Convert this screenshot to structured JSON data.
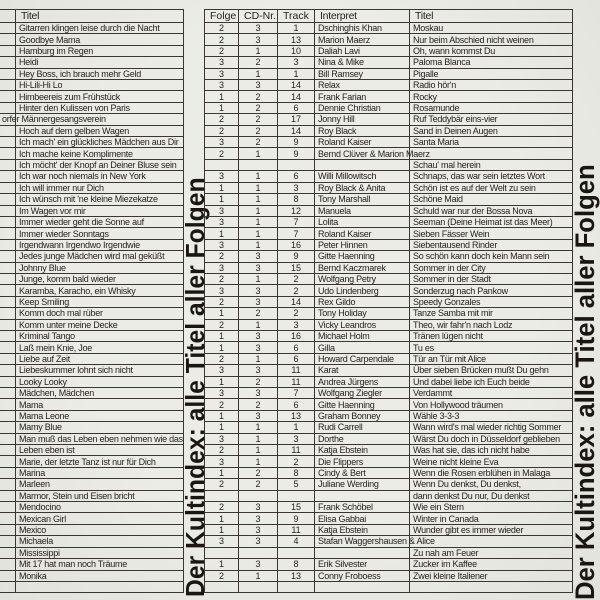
{
  "banners": {
    "middle": "Der Kultindex: alle Titel aller Folgen",
    "right": "Der Kultindex: alle Titel aller Folgen"
  },
  "left_table": {
    "header": "Titel",
    "rows": [
      {
        "text": "Gitarren klingen leise durch die Nacht"
      },
      {
        "text": "Goodbye Mama"
      },
      {
        "text": "Hamburg im Regen"
      },
      {
        "text": "Heidi"
      },
      {
        "text": "Hey Boss, ich brauch mehr Geld"
      },
      {
        "text": "Hi-Lili-Hi Lo"
      },
      {
        "text": "Himbeereis zum Frühstück"
      },
      {
        "text": "Hinter den Kulissen von Paris"
      },
      {
        "text": "orfer Männergesangsverein",
        "cut_left": true
      },
      {
        "text": "Hoch auf dem gelben Wagen"
      },
      {
        "text": "Ich mach' ein glückliches Mädchen aus Dir"
      },
      {
        "text": "Ich mache keine Komplimente"
      },
      {
        "text": "Ich möcht' der Knopf an Deiner Bluse sein"
      },
      {
        "text": "Ich war noch niemals in New York"
      },
      {
        "text": "Ich will immer nur Dich"
      },
      {
        "text": "Ich wünsch mit 'ne kleine Miezekatze"
      },
      {
        "text": "Im Wagen vor mir"
      },
      {
        "text": "Immer wieder geht die Sonne auf"
      },
      {
        "text": "Immer wieder Sonntags"
      },
      {
        "text": "Irgendwann Irgendwo Irgendwie"
      },
      {
        "text": "Jedes junge Mädchen wird mal geküßt"
      },
      {
        "text": "Johnny Blue"
      },
      {
        "text": "Junge, komm bald wieder"
      },
      {
        "text": "Karamba, Karacho, ein Whisky"
      },
      {
        "text": "Keep Smiling"
      },
      {
        "text": "Komm doch mal rüber"
      },
      {
        "text": "Komm unter meine Decke"
      },
      {
        "text": "Kriminal Tango"
      },
      {
        "text": "Laß mein Knie, Joe"
      },
      {
        "text": "Liebe auf Zeit"
      },
      {
        "text": "Liebeskummer lohnt sich nicht"
      },
      {
        "text": "Looky Looky"
      },
      {
        "text": "Mädchen, Mädchen"
      },
      {
        "text": "Mama"
      },
      {
        "text": "Mama Leone"
      },
      {
        "text": "Mamy Blue"
      },
      {
        "text": "Man muß das Leben eben nehmen wie das"
      },
      {
        "text": "Leben eben ist"
      },
      {
        "text": "Marie, der letzte Tanz ist nur für Dich"
      },
      {
        "text": "Marina"
      },
      {
        "text": "Marleen"
      },
      {
        "text": "Marmor, Stein und Eisen bricht"
      },
      {
        "text": "Mendocino"
      },
      {
        "text": "Mexican Girl"
      },
      {
        "text": "Mexico"
      },
      {
        "text": "Michaela"
      },
      {
        "text": "Mississippi"
      },
      {
        "text": "Mit 17 hat man noch Träume"
      },
      {
        "text": "Monika"
      },
      {
        "text": ""
      }
    ]
  },
  "right_table": {
    "headers": {
      "folge": "Folge",
      "cd": "CD-Nr.",
      "track": "Track",
      "interpret": "Interpret",
      "titel": "Titel"
    },
    "rows": [
      {
        "folge": "2",
        "cd": "3",
        "track": "1",
        "interpret": "Dschinghis Khan",
        "titel": "Moskau"
      },
      {
        "folge": "2",
        "cd": "3",
        "track": "13",
        "interpret": "Marion Maerz",
        "titel": "Nur beim Abschied nicht weinen"
      },
      {
        "folge": "2",
        "cd": "1",
        "track": "10",
        "interpret": "Daliah Lavi",
        "titel": "Oh, wann kommst Du"
      },
      {
        "folge": "3",
        "cd": "2",
        "track": "3",
        "interpret": "Nina & Mike",
        "titel": "Paloma Blanca"
      },
      {
        "folge": "3",
        "cd": "1",
        "track": "1",
        "interpret": "Bill Ramsey",
        "titel": "Pigalle"
      },
      {
        "folge": "3",
        "cd": "3",
        "track": "14",
        "interpret": "Relax",
        "titel": "Radio hör'n"
      },
      {
        "folge": "1",
        "cd": "2",
        "track": "14",
        "interpret": "Frank Farian",
        "titel": "Rocky"
      },
      {
        "folge": "1",
        "cd": "2",
        "track": "6",
        "interpret": "Dennie Christian",
        "titel": "Rosamunde"
      },
      {
        "folge": "2",
        "cd": "2",
        "track": "17",
        "interpret": "Jonny Hill",
        "titel": "Ruf Teddybär eins-vier"
      },
      {
        "folge": "2",
        "cd": "2",
        "track": "14",
        "interpret": "Roy Black",
        "titel": "Sand in Deinen Augen"
      },
      {
        "folge": "3",
        "cd": "2",
        "track": "9",
        "interpret": "Roland Kaiser",
        "titel": "Santa Maria"
      },
      {
        "folge": "2",
        "cd": "1",
        "track": "9",
        "interpret": "Bernd Clüver & Marion Maerz",
        "titel": "",
        "spill": true
      },
      {
        "folge": "",
        "cd": "",
        "track": "",
        "interpret": "",
        "titel": "Schau' mal herein"
      },
      {
        "folge": "3",
        "cd": "1",
        "track": "6",
        "interpret": "Willi Millowitsch",
        "titel": "Schnaps, das war sein letztes Wort"
      },
      {
        "folge": "1",
        "cd": "1",
        "track": "3",
        "interpret": "Roy Black & Anita",
        "titel": "Schön ist es auf der Welt zu sein"
      },
      {
        "folge": "1",
        "cd": "1",
        "track": "8",
        "interpret": "Tony Marshall",
        "titel": "Schöne Maid"
      },
      {
        "folge": "3",
        "cd": "1",
        "track": "12",
        "interpret": "Manuela",
        "titel": "Schuld war nur der Bossa Nova"
      },
      {
        "folge": "3",
        "cd": "1",
        "track": "7",
        "interpret": "Lolita",
        "titel": "Seeman (Deine Heimat ist das Meer)"
      },
      {
        "folge": "1",
        "cd": "1",
        "track": "7",
        "interpret": "Roland Kaiser",
        "titel": "Sieben Fässer Wein"
      },
      {
        "folge": "3",
        "cd": "1",
        "track": "16",
        "interpret": "Peter Hinnen",
        "titel": "Siebentausend Rinder"
      },
      {
        "folge": "2",
        "cd": "3",
        "track": "9",
        "interpret": "Gitte Haenning",
        "titel": "So schön kann doch kein Mann sein"
      },
      {
        "folge": "3",
        "cd": "3",
        "track": "15",
        "interpret": "Bernd Kaczmarek",
        "titel": "Sommer in der City"
      },
      {
        "folge": "2",
        "cd": "1",
        "track": "2",
        "interpret": "Wolfgang Petry",
        "titel": "Sommer in der Stadt"
      },
      {
        "folge": "3",
        "cd": "3",
        "track": "2",
        "interpret": "Udo Lindenberg",
        "titel": "Sonderzug nach Pankow"
      },
      {
        "folge": "2",
        "cd": "3",
        "track": "14",
        "interpret": "Rex Gildo",
        "titel": "Speedy Gonzales"
      },
      {
        "folge": "1",
        "cd": "2",
        "track": "2",
        "interpret": "Tony Holiday",
        "titel": "Tanze Samba mit mir"
      },
      {
        "folge": "2",
        "cd": "1",
        "track": "3",
        "interpret": "Vicky Leandros",
        "titel": "Theo, wir fahr'n nach Lodz"
      },
      {
        "folge": "1",
        "cd": "3",
        "track": "16",
        "interpret": "Michael Holm",
        "titel": "Tränen lügen nicht"
      },
      {
        "folge": "1",
        "cd": "3",
        "track": "6",
        "interpret": "Gilla",
        "titel": "Tu es"
      },
      {
        "folge": "2",
        "cd": "1",
        "track": "6",
        "interpret": "Howard Carpendale",
        "titel": "Tür an Tür mit Alice"
      },
      {
        "folge": "3",
        "cd": "3",
        "track": "11",
        "interpret": "Karat",
        "titel": "Über sieben Brücken mußt Du gehn"
      },
      {
        "folge": "1",
        "cd": "2",
        "track": "11",
        "interpret": "Andrea Jürgens",
        "titel": "Und dabei liebe ich Euch beide"
      },
      {
        "folge": "3",
        "cd": "3",
        "track": "7",
        "interpret": "Wolfgang Ziegler",
        "titel": "Verdammt"
      },
      {
        "folge": "2",
        "cd": "2",
        "track": "6",
        "interpret": "Gitte Haenning",
        "titel": "Von Hollywood träumen"
      },
      {
        "folge": "1",
        "cd": "3",
        "track": "13",
        "interpret": "Graham Bonney",
        "titel": "Wähle 3-3-3"
      },
      {
        "folge": "1",
        "cd": "1",
        "track": "1",
        "interpret": "Rudi Carrell",
        "titel": "Wann wird's mal wieder richtig Sommer"
      },
      {
        "folge": "3",
        "cd": "1",
        "track": "3",
        "interpret": "Dorthe",
        "titel": "Wärst Du doch in Düsseldorf geblieben"
      },
      {
        "folge": "2",
        "cd": "1",
        "track": "11",
        "interpret": "Katja Ebstein",
        "titel": "Was hat sie, das ich nicht habe"
      },
      {
        "folge": "3",
        "cd": "1",
        "track": "2",
        "interpret": "Die Flippers",
        "titel": "Weine nicht kleine Eva"
      },
      {
        "folge": "1",
        "cd": "2",
        "track": "8",
        "interpret": "Cindy & Bert",
        "titel": "Wenn die Rosen erblühen in Malaga"
      },
      {
        "folge": "2",
        "cd": "2",
        "track": "5",
        "interpret": "Juliane Werding",
        "titel": "Wenn Du denkst, Du denkst,"
      },
      {
        "folge": "",
        "cd": "",
        "track": "",
        "interpret": "",
        "titel": "dann denkst Du nur, Du denkst"
      },
      {
        "folge": "2",
        "cd": "3",
        "track": "15",
        "interpret": "Frank Schöbel",
        "titel": "Wie ein Stern"
      },
      {
        "folge": "1",
        "cd": "3",
        "track": "9",
        "interpret": "Elisa Gabbai",
        "titel": "Winter in Canada"
      },
      {
        "folge": "1",
        "cd": "3",
        "track": "11",
        "interpret": "Katja Ebstein",
        "titel": "Wunder gibt es immer wieder"
      },
      {
        "folge": "3",
        "cd": "3",
        "track": "4",
        "interpret": "Stafan Waggershausen & Alice",
        "titel": "",
        "spill": true
      },
      {
        "folge": "",
        "cd": "",
        "track": "",
        "interpret": "",
        "titel": "Zu nah am Feuer"
      },
      {
        "folge": "1",
        "cd": "3",
        "track": "8",
        "interpret": "Erik Silvester",
        "titel": "Zucker im Kaffee"
      },
      {
        "folge": "2",
        "cd": "1",
        "track": "13",
        "interpret": "Conny Froboess",
        "titel": "Zwei kleine Italiener"
      },
      {
        "folge": "",
        "cd": "",
        "track": "",
        "interpret": "",
        "titel": ""
      }
    ]
  }
}
